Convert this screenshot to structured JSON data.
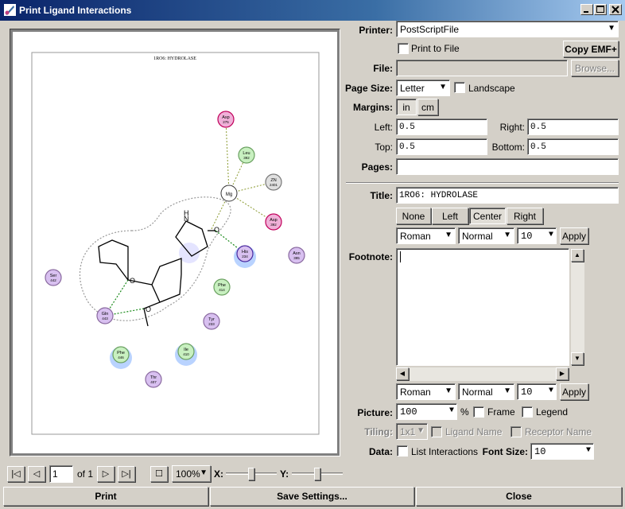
{
  "window": {
    "title": "Print Ligand Interactions"
  },
  "preview": {
    "page_title": "1RO6: HYDROLASE",
    "residues": [
      {
        "name": "Asp",
        "num": "275",
        "fill": "#f0b0d8",
        "ring": "#c0005a"
      },
      {
        "name": "Leu",
        "num": "392",
        "fill": "#c8f0c0",
        "ring": "#6aa060"
      },
      {
        "name": "ZN",
        "num": "2401",
        "fill": "#e0e0e0",
        "ring": "#777777"
      },
      {
        "name": "Asp",
        "num": "392",
        "fill": "#f0b0d8",
        "ring": "#c0005a"
      },
      {
        "name": "His",
        "num": "234",
        "fill": "#d8c0f0",
        "ring": "#4a2aa0"
      },
      {
        "name": "Asn",
        "num": "395",
        "fill": "#d8c0f0",
        "ring": "#8a6aa0"
      },
      {
        "name": "Phe",
        "num": "414",
        "fill": "#c8f0c0",
        "ring": "#6aa060"
      },
      {
        "name": "Ser",
        "num": "442",
        "fill": "#d8c0f0",
        "ring": "#8a6aa0"
      },
      {
        "name": "Gln",
        "num": "443",
        "fill": "#d8c0f0",
        "ring": "#8a6aa0"
      },
      {
        "name": "Tyr",
        "num": "233",
        "fill": "#d8c0f0",
        "ring": "#8a6aa0"
      },
      {
        "name": "Phe",
        "num": "446",
        "fill": "#c8f0c0",
        "ring": "#6aa060"
      },
      {
        "name": "Ile",
        "num": "410",
        "fill": "#c8f0c0",
        "ring": "#6aa060"
      },
      {
        "name": "Thr",
        "num": "407",
        "fill": "#d8c0f0",
        "ring": "#8a6aa0"
      }
    ],
    "metal": {
      "label": "Mg"
    },
    "atoms": {
      "n": "N",
      "h": "H",
      "o": "O",
      "o2": "O",
      "o3": "O"
    }
  },
  "printer": {
    "label": "Printer:",
    "value": "PostScriptFile",
    "print_to_file": "Print to File",
    "copy_emf": "Copy EMF+",
    "file_label": "File:",
    "file_value": "",
    "browse": "Browse..."
  },
  "page": {
    "size_label": "Page Size:",
    "size_value": "Letter",
    "landscape": "Landscape",
    "margins_label": "Margins:",
    "unit_in": "in",
    "unit_cm": "cm",
    "left_label": "Left:",
    "left_value": "0.5",
    "right_label": "Right:",
    "right_value": "0.5",
    "top_label": "Top:",
    "top_value": "0.5",
    "bottom_label": "Bottom:",
    "bottom_value": "0.5",
    "pages_label": "Pages:",
    "pages_value": ""
  },
  "title_section": {
    "label": "Title:",
    "value": "1RO6: HYDROLASE",
    "align_none": "None",
    "align_left": "Left",
    "align_center": "Center",
    "align_right": "Right",
    "font": "Roman",
    "style": "Normal",
    "size": "10",
    "apply": "Apply"
  },
  "footnote": {
    "label": "Footnote:",
    "value": "",
    "font": "Roman",
    "style": "Normal",
    "size": "10",
    "apply": "Apply"
  },
  "picture": {
    "label": "Picture:",
    "value": "100",
    "percent": "%",
    "frame": "Frame",
    "legend": "Legend",
    "tiling_label": "Tiling:",
    "tiling_value": "1x1",
    "ligand_name": "Ligand Name",
    "receptor_name": "Receptor Name",
    "data_label": "Data:",
    "list_interactions": "List Interactions",
    "font_size_label": "Font Size:",
    "font_size_value": "10"
  },
  "nav": {
    "page_value": "1",
    "of_label": "of 1",
    "zoom": "100%",
    "x_label": "X:",
    "y_label": "Y:"
  },
  "buttons": {
    "print": "Print",
    "save": "Save Settings...",
    "close": "Close"
  }
}
